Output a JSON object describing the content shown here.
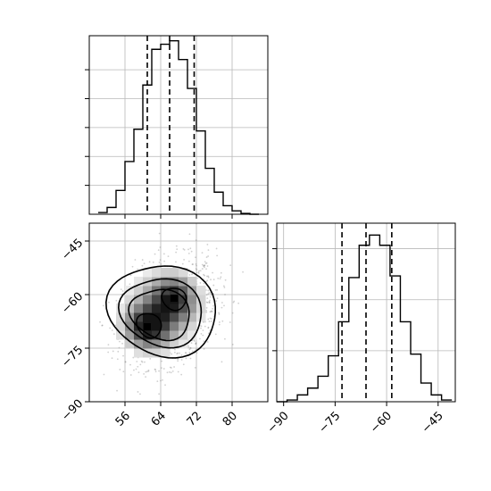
{
  "chart_data": [
    {
      "panel": "histogram-x",
      "type": "histogram",
      "xlim": [
        48,
        88
      ],
      "ylim": [
        0,
        1.05
      ],
      "grid": true,
      "bins_x": [
        50,
        52,
        54,
        56,
        58,
        60,
        62,
        64,
        66,
        68,
        70,
        72,
        74,
        76,
        78,
        80,
        82,
        84,
        86
      ],
      "heights": [
        0.01,
        0.04,
        0.14,
        0.31,
        0.5,
        0.76,
        0.97,
        1.0,
        1.02,
        0.91,
        0.74,
        0.49,
        0.27,
        0.13,
        0.05,
        0.02,
        0.005,
        0.0
      ],
      "quantiles": [
        61,
        66,
        71.5
      ],
      "y_ticks_unlabeled": [
        0.17,
        0.34,
        0.51,
        0.68,
        0.85
      ]
    },
    {
      "panel": "histogram-y",
      "type": "histogram",
      "xlim": [
        -92,
        -40
      ],
      "ylim": [
        0,
        1.05
      ],
      "grid": true,
      "bins_x": [
        -92,
        -89,
        -86,
        -83,
        -80,
        -77,
        -74,
        -71,
        -68,
        -65,
        -62,
        -59,
        -56,
        -53,
        -50,
        -47,
        -44,
        -41
      ],
      "heights": [
        0.0,
        0.01,
        0.04,
        0.08,
        0.15,
        0.27,
        0.47,
        0.73,
        0.92,
        0.98,
        0.92,
        0.74,
        0.47,
        0.28,
        0.11,
        0.04,
        0.01
      ],
      "quantiles": [
        -73,
        -66,
        -58.5
      ],
      "x_ticks": [
        -90,
        -75,
        -60,
        -45
      ],
      "y_ticks_unlabeled": [
        0.3,
        0.6,
        0.9
      ]
    },
    {
      "panel": "2d-density",
      "type": "heatmap",
      "xlim": [
        48,
        88
      ],
      "ylim": [
        -90,
        -40
      ],
      "grid": true,
      "x_ticks": [
        56,
        64,
        72,
        80
      ],
      "y_ticks": [
        -90,
        -75,
        -60,
        -45
      ],
      "contour_levels": 4,
      "peaks": [
        {
          "x": 61,
          "y": -69
        },
        {
          "x": 67,
          "y": -61
        }
      ]
    }
  ]
}
